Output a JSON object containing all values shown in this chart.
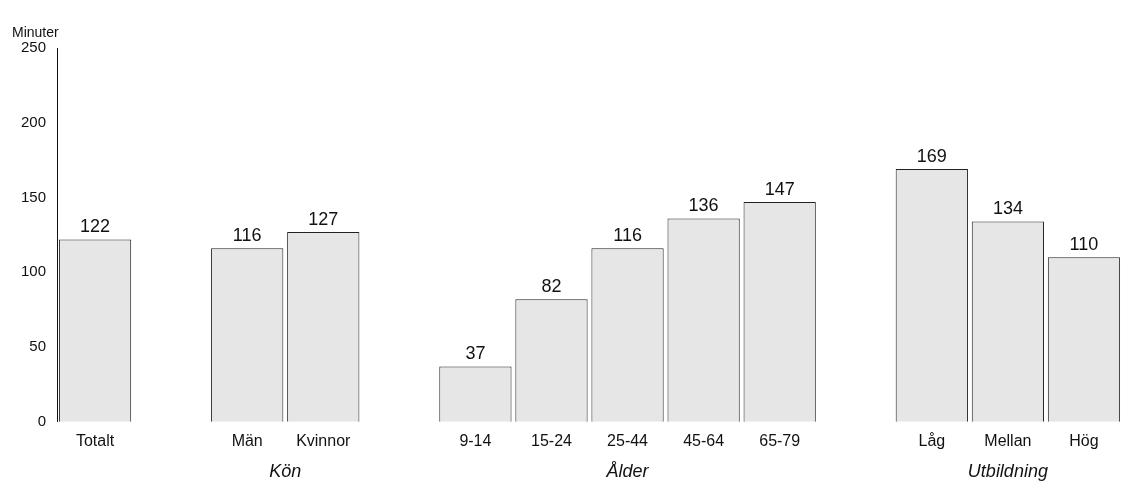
{
  "chart_data": {
    "type": "bar",
    "ylabel": "Minuter",
    "categories": [
      "Totalt",
      null,
      "Män",
      "Kvinnor",
      null,
      "9-14",
      "15-24",
      "25-44",
      "45-64",
      "65-79",
      null,
      "Låg",
      "Mellan",
      "Hög"
    ],
    "values": [
      122,
      null,
      116,
      127,
      null,
      37,
      82,
      116,
      136,
      147,
      null,
      169,
      134,
      110
    ],
    "color": "#e6e6e6",
    "ylim": [
      0,
      250
    ],
    "yticks": [
      0,
      50,
      100,
      150,
      200,
      250
    ],
    "grid": false,
    "legend": false,
    "data_labels": true,
    "annotations": [
      "Kön",
      "Ålder",
      "Utbildning"
    ]
  }
}
